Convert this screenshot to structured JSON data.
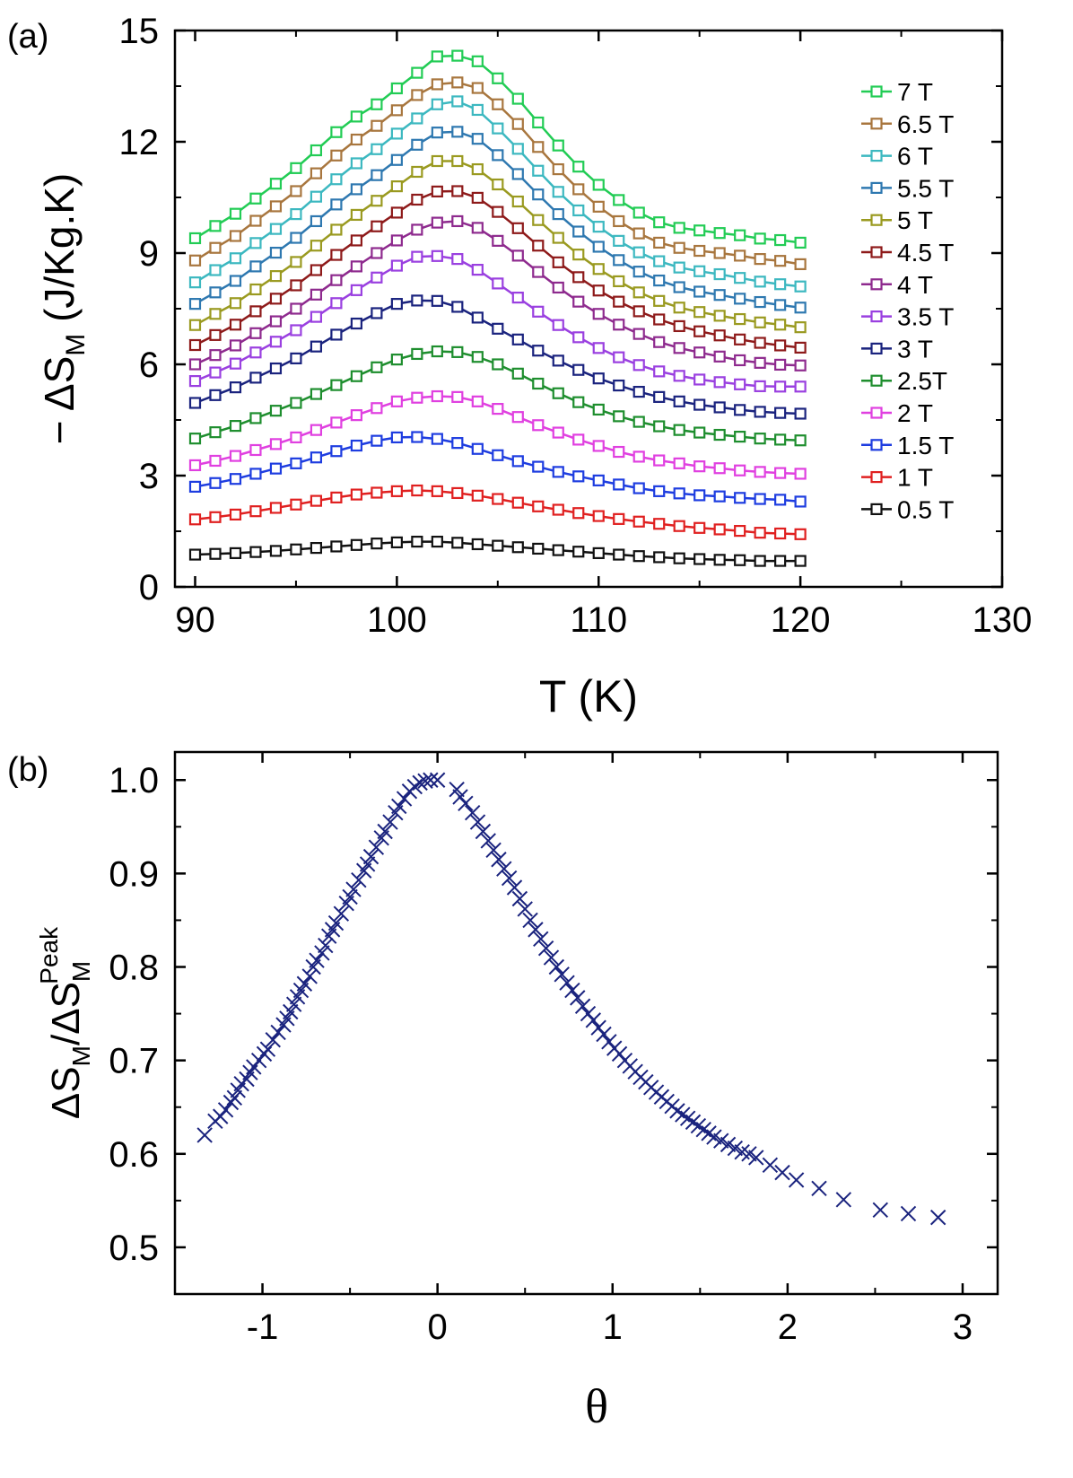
{
  "chart_data": [
    {
      "panel_label": "(a)",
      "type": "line",
      "marker": "open-square",
      "xlabel": "T (K)",
      "ylabel": {
        "prefix": "− ΔS",
        "sub": "M",
        "suffix": " (J/Kg.K)"
      },
      "xlim": [
        89,
        130
      ],
      "ylim": [
        0,
        15
      ],
      "xticks": [
        90,
        100,
        110,
        120,
        130
      ],
      "yticks": [
        0,
        3,
        6,
        9,
        12,
        15
      ],
      "legend_position": "right",
      "x": [
        90,
        91,
        92,
        93,
        94,
        95,
        96,
        97,
        98,
        99,
        100,
        101,
        102,
        103,
        104,
        105,
        106,
        107,
        108,
        109,
        110,
        111,
        112,
        113,
        114,
        115,
        116,
        117,
        118,
        119,
        120
      ],
      "series": [
        {
          "name": "7 T",
          "color": "#22cc55",
          "values": [
            9.4,
            9.73,
            10.06,
            10.47,
            10.87,
            11.29,
            11.77,
            12.26,
            12.68,
            13.01,
            13.44,
            13.86,
            14.3,
            14.32,
            14.17,
            13.71,
            13.16,
            12.52,
            11.9,
            11.33,
            10.84,
            10.43,
            10.09,
            9.83,
            9.68,
            9.61,
            9.54,
            9.48,
            9.39,
            9.35,
            9.28
          ]
        },
        {
          "name": "6.5 T",
          "color": "#a8763e",
          "values": [
            8.8,
            9.14,
            9.46,
            9.87,
            10.26,
            10.67,
            11.15,
            11.63,
            12.06,
            12.43,
            12.85,
            13.26,
            13.55,
            13.6,
            13.45,
            13.01,
            12.48,
            11.86,
            11.26,
            10.72,
            10.25,
            9.86,
            9.53,
            9.28,
            9.14,
            9.06,
            9.0,
            8.93,
            8.84,
            8.79,
            8.7
          ]
        },
        {
          "name": "6 T",
          "color": "#3cb8c0",
          "values": [
            8.21,
            8.54,
            8.86,
            9.27,
            9.65,
            10.05,
            10.52,
            10.99,
            11.42,
            11.8,
            12.22,
            12.63,
            13.01,
            13.09,
            12.86,
            12.36,
            11.81,
            11.22,
            10.65,
            10.15,
            9.71,
            9.33,
            9.02,
            8.78,
            8.61,
            8.51,
            8.43,
            8.33,
            8.23,
            8.16,
            8.1
          ]
        },
        {
          "name": "5.5 T",
          "color": "#2e78b0",
          "values": [
            7.63,
            7.94,
            8.25,
            8.64,
            9.01,
            9.41,
            9.86,
            10.31,
            10.72,
            11.1,
            11.51,
            11.92,
            12.25,
            12.27,
            12.08,
            11.64,
            11.13,
            10.58,
            10.05,
            9.58,
            9.17,
            8.81,
            8.5,
            8.26,
            8.08,
            7.96,
            7.87,
            7.77,
            7.68,
            7.6,
            7.53
          ]
        },
        {
          "name": "5 T",
          "color": "#9a9a20",
          "values": [
            7.06,
            7.36,
            7.65,
            8.02,
            8.38,
            8.76,
            9.2,
            9.63,
            10.03,
            10.41,
            10.8,
            11.19,
            11.48,
            11.48,
            11.26,
            10.85,
            10.39,
            9.89,
            9.41,
            8.96,
            8.57,
            8.24,
            7.94,
            7.71,
            7.53,
            7.41,
            7.31,
            7.22,
            7.13,
            7.07,
            7.0
          ]
        },
        {
          "name": "4.5 T",
          "color": "#8e1a1a",
          "values": [
            6.52,
            6.79,
            7.07,
            7.43,
            7.77,
            8.13,
            8.54,
            8.95,
            9.34,
            9.72,
            10.09,
            10.44,
            10.66,
            10.67,
            10.49,
            10.11,
            9.67,
            9.2,
            8.75,
            8.35,
            7.99,
            7.69,
            7.43,
            7.21,
            7.03,
            6.89,
            6.78,
            6.67,
            6.58,
            6.51,
            6.45
          ]
        },
        {
          "name": "4 T",
          "color": "#8e2a8e",
          "values": [
            6.0,
            6.25,
            6.51,
            6.84,
            7.16,
            7.5,
            7.88,
            8.27,
            8.64,
            9.0,
            9.34,
            9.63,
            9.82,
            9.86,
            9.68,
            9.33,
            8.93,
            8.49,
            8.07,
            7.69,
            7.36,
            7.07,
            6.82,
            6.6,
            6.44,
            6.32,
            6.21,
            6.11,
            6.04,
            5.99,
            5.97
          ]
        },
        {
          "name": "3.5 T",
          "color": "#9a40e0",
          "values": [
            5.55,
            5.78,
            6.02,
            6.32,
            6.61,
            6.92,
            7.28,
            7.65,
            8.0,
            8.34,
            8.66,
            8.9,
            8.92,
            8.84,
            8.55,
            8.18,
            7.8,
            7.42,
            7.06,
            6.73,
            6.44,
            6.19,
            5.98,
            5.81,
            5.69,
            5.59,
            5.52,
            5.46,
            5.41,
            5.4,
            5.4
          ]
        },
        {
          "name": "3 T",
          "color": "#1a237e",
          "values": [
            4.96,
            5.17,
            5.38,
            5.64,
            5.89,
            6.16,
            6.48,
            6.8,
            7.1,
            7.38,
            7.63,
            7.72,
            7.71,
            7.55,
            7.26,
            6.96,
            6.67,
            6.37,
            6.1,
            5.85,
            5.62,
            5.43,
            5.26,
            5.12,
            5.0,
            4.91,
            4.84,
            4.77,
            4.72,
            4.69,
            4.67
          ]
        },
        {
          "name": "2.5T",
          "color": "#1e8e2e",
          "values": [
            4.0,
            4.17,
            4.34,
            4.55,
            4.75,
            4.96,
            5.2,
            5.44,
            5.68,
            5.92,
            6.13,
            6.28,
            6.35,
            6.33,
            6.2,
            6.0,
            5.75,
            5.48,
            5.22,
            4.98,
            4.78,
            4.6,
            4.45,
            4.33,
            4.23,
            4.16,
            4.1,
            4.05,
            4.0,
            3.97,
            3.95
          ]
        },
        {
          "name": "2 T",
          "color": "#e040e0",
          "values": [
            3.28,
            3.4,
            3.53,
            3.69,
            3.85,
            4.03,
            4.23,
            4.43,
            4.63,
            4.82,
            5.0,
            5.1,
            5.14,
            5.12,
            5.0,
            4.8,
            4.58,
            4.36,
            4.16,
            3.97,
            3.8,
            3.64,
            3.51,
            3.41,
            3.33,
            3.25,
            3.2,
            3.14,
            3.1,
            3.07,
            3.05
          ]
        },
        {
          "name": "1.5 T",
          "color": "#1e3de0",
          "values": [
            2.7,
            2.8,
            2.91,
            3.05,
            3.19,
            3.33,
            3.49,
            3.66,
            3.81,
            3.94,
            4.03,
            4.04,
            3.99,
            3.88,
            3.72,
            3.55,
            3.39,
            3.24,
            3.1,
            2.98,
            2.87,
            2.76,
            2.66,
            2.58,
            2.52,
            2.47,
            2.44,
            2.4,
            2.37,
            2.35,
            2.3
          ]
        },
        {
          "name": "1 T",
          "color": "#e02020",
          "values": [
            1.82,
            1.88,
            1.95,
            2.04,
            2.13,
            2.22,
            2.32,
            2.41,
            2.49,
            2.54,
            2.58,
            2.6,
            2.58,
            2.53,
            2.46,
            2.37,
            2.27,
            2.17,
            2.08,
            1.99,
            1.91,
            1.83,
            1.76,
            1.7,
            1.64,
            1.59,
            1.55,
            1.51,
            1.46,
            1.44,
            1.42
          ]
        },
        {
          "name": "0.5 T",
          "color": "#111111",
          "values": [
            0.87,
            0.89,
            0.91,
            0.94,
            0.97,
            1.01,
            1.05,
            1.09,
            1.13,
            1.17,
            1.2,
            1.22,
            1.22,
            1.19,
            1.15,
            1.11,
            1.07,
            1.03,
            0.99,
            0.95,
            0.91,
            0.87,
            0.83,
            0.8,
            0.77,
            0.75,
            0.73,
            0.72,
            0.7,
            0.7,
            0.7
          ]
        }
      ]
    },
    {
      "panel_label": "(b)",
      "type": "scatter",
      "marker": "x",
      "color": "#1a237e",
      "xlabel": "θ",
      "ylabel": {
        "prefix": "ΔS",
        "sub": "M",
        "mid": "/ΔS",
        "sub2": "M",
        "sup": "Peak"
      },
      "xlim": [
        -1.5,
        3.2
      ],
      "ylim": [
        0.45,
        1.03
      ],
      "xticks": [
        -1,
        0,
        1,
        2,
        3
      ],
      "yticks": [
        0.5,
        0.6,
        0.7,
        0.8,
        0.9,
        1.0
      ],
      "xtick_labels": [
        "-1",
        "0",
        "1",
        "2",
        "3"
      ],
      "ytick_labels": [
        "0.5",
        "0.6",
        "0.7",
        "0.8",
        "0.9",
        "1.0"
      ],
      "points": [
        [
          -1.33,
          0.62
        ],
        [
          -1.27,
          0.635
        ],
        [
          -1.24,
          0.64
        ],
        [
          -1.21,
          0.647
        ],
        [
          -1.18,
          0.655
        ],
        [
          -1.16,
          0.66
        ],
        [
          -1.14,
          0.668
        ],
        [
          -1.12,
          0.675
        ],
        [
          -1.09,
          0.68
        ],
        [
          -1.07,
          0.687
        ],
        [
          -1.05,
          0.693
        ],
        [
          -1.02,
          0.7
        ],
        [
          -0.99,
          0.707
        ],
        [
          -0.97,
          0.712
        ],
        [
          -0.94,
          0.722
        ],
        [
          -0.91,
          0.73
        ],
        [
          -0.88,
          0.738
        ],
        [
          -0.86,
          0.745
        ],
        [
          -0.84,
          0.752
        ],
        [
          -0.82,
          0.76
        ],
        [
          -0.8,
          0.768
        ],
        [
          -0.78,
          0.775
        ],
        [
          -0.76,
          0.782
        ],
        [
          -0.73,
          0.79
        ],
        [
          -0.71,
          0.8
        ],
        [
          -0.69,
          0.807
        ],
        [
          -0.66,
          0.815
        ],
        [
          -0.64,
          0.823
        ],
        [
          -0.62,
          0.833
        ],
        [
          -0.6,
          0.84
        ],
        [
          -0.58,
          0.847
        ],
        [
          -0.55,
          0.857
        ],
        [
          -0.52,
          0.868
        ],
        [
          -0.5,
          0.875
        ],
        [
          -0.48,
          0.883
        ],
        [
          -0.45,
          0.893
        ],
        [
          -0.42,
          0.903
        ],
        [
          -0.4,
          0.91
        ],
        [
          -0.38,
          0.918
        ],
        [
          -0.35,
          0.928
        ],
        [
          -0.32,
          0.938
        ],
        [
          -0.3,
          0.945
        ],
        [
          -0.27,
          0.955
        ],
        [
          -0.24,
          0.965
        ],
        [
          -0.22,
          0.972
        ],
        [
          -0.19,
          0.98
        ],
        [
          -0.16,
          0.988
        ],
        [
          -0.13,
          0.993
        ],
        [
          -0.1,
          0.997
        ],
        [
          -0.07,
          0.999
        ],
        [
          -0.04,
          1.0
        ],
        [
          0.0,
          1.0
        ],
        [
          0.11,
          0.99
        ],
        [
          0.13,
          0.982
        ],
        [
          0.16,
          0.975
        ],
        [
          0.2,
          0.965
        ],
        [
          0.23,
          0.955
        ],
        [
          0.26,
          0.945
        ],
        [
          0.29,
          0.935
        ],
        [
          0.32,
          0.925
        ],
        [
          0.35,
          0.915
        ],
        [
          0.38,
          0.905
        ],
        [
          0.41,
          0.895
        ],
        [
          0.44,
          0.885
        ],
        [
          0.47,
          0.873
        ],
        [
          0.5,
          0.862
        ],
        [
          0.53,
          0.85
        ],
        [
          0.56,
          0.84
        ],
        [
          0.59,
          0.83
        ],
        [
          0.62,
          0.82
        ],
        [
          0.65,
          0.81
        ],
        [
          0.68,
          0.8
        ],
        [
          0.71,
          0.792
        ],
        [
          0.74,
          0.783
        ],
        [
          0.77,
          0.775
        ],
        [
          0.8,
          0.767
        ],
        [
          0.83,
          0.758
        ],
        [
          0.86,
          0.75
        ],
        [
          0.89,
          0.743
        ],
        [
          0.92,
          0.735
        ],
        [
          0.95,
          0.728
        ],
        [
          0.98,
          0.72
        ],
        [
          1.01,
          0.713
        ],
        [
          1.04,
          0.707
        ],
        [
          1.07,
          0.7
        ],
        [
          1.1,
          0.694
        ],
        [
          1.13,
          0.688
        ],
        [
          1.16,
          0.682
        ],
        [
          1.19,
          0.677
        ],
        [
          1.22,
          0.671
        ],
        [
          1.25,
          0.666
        ],
        [
          1.28,
          0.661
        ],
        [
          1.31,
          0.656
        ],
        [
          1.34,
          0.651
        ],
        [
          1.37,
          0.646
        ],
        [
          1.4,
          0.642
        ],
        [
          1.43,
          0.638
        ],
        [
          1.46,
          0.634
        ],
        [
          1.49,
          0.63
        ],
        [
          1.52,
          0.626
        ],
        [
          1.55,
          0.622
        ],
        [
          1.58,
          0.618
        ],
        [
          1.62,
          0.614
        ],
        [
          1.66,
          0.61
        ],
        [
          1.7,
          0.606
        ],
        [
          1.74,
          0.602
        ],
        [
          1.78,
          0.6
        ],
        [
          1.82,
          0.596
        ],
        [
          1.9,
          0.588
        ],
        [
          1.97,
          0.58
        ],
        [
          2.05,
          0.572
        ],
        [
          2.18,
          0.563
        ],
        [
          2.32,
          0.551
        ],
        [
          2.53,
          0.54
        ],
        [
          2.69,
          0.536
        ],
        [
          2.86,
          0.532
        ]
      ]
    }
  ]
}
